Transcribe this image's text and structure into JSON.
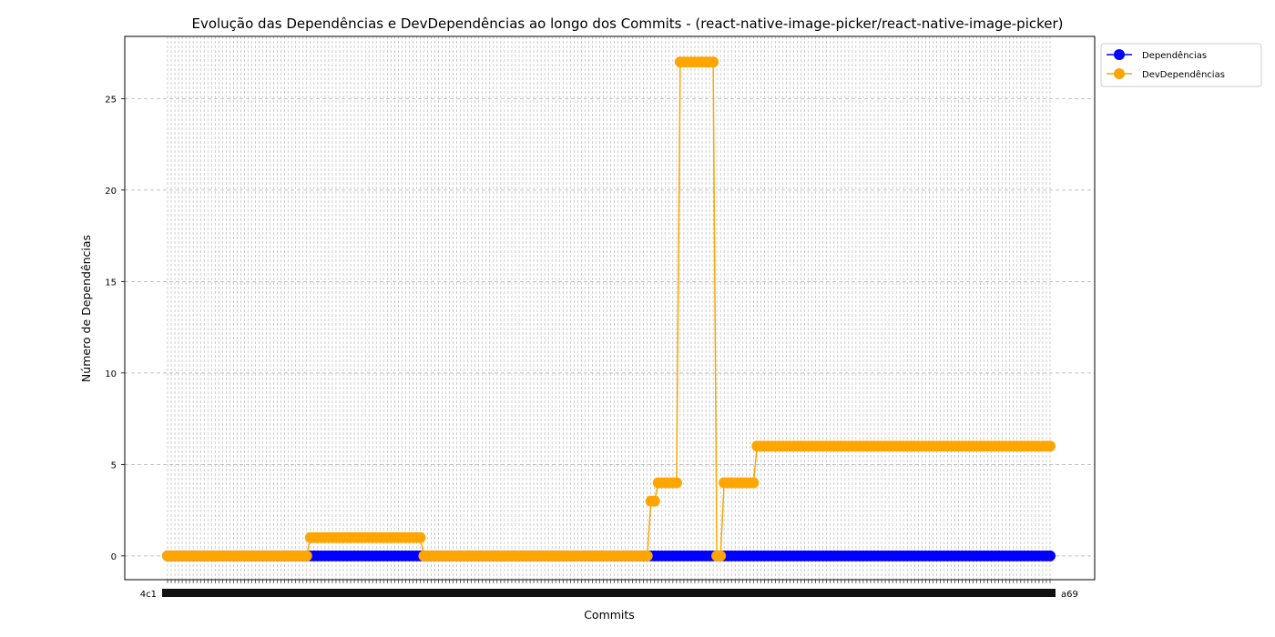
{
  "chart_data": {
    "type": "line",
    "title": "Evolução das Dependências e DevDependências ao longo dos Commits - (react-native-image-picker/react-native-image-picker)",
    "xlabel": "Commits",
    "ylabel": "Número de Dependências",
    "ylim": [
      -1.3,
      28.4
    ],
    "yticks": [
      0,
      5,
      10,
      15,
      20,
      25
    ],
    "grid": true,
    "legend_position": "outside-top-right",
    "x_count": 242,
    "x_tick_first": "4c1",
    "x_tick_last": "a69",
    "series": [
      {
        "name": "Dependências",
        "color": "#0000ff",
        "marker": "circle",
        "segments": [
          {
            "from": 0,
            "to": 241,
            "value": 0
          }
        ]
      },
      {
        "name": "DevDependências",
        "color": "#ffa500",
        "marker": "circle",
        "segments": [
          {
            "from": 0,
            "to": 38,
            "value": 0
          },
          {
            "from": 39,
            "to": 69,
            "value": 1
          },
          {
            "from": 70,
            "to": 131,
            "value": 0
          },
          {
            "from": 132,
            "to": 133,
            "value": 3
          },
          {
            "from": 134,
            "to": 139,
            "value": 4
          },
          {
            "from": 140,
            "to": 149,
            "value": 27
          },
          {
            "from": 150,
            "to": 151,
            "value": 0
          },
          {
            "from": 152,
            "to": 160,
            "value": 4
          },
          {
            "from": 161,
            "to": 241,
            "value": 6
          }
        ]
      }
    ]
  }
}
